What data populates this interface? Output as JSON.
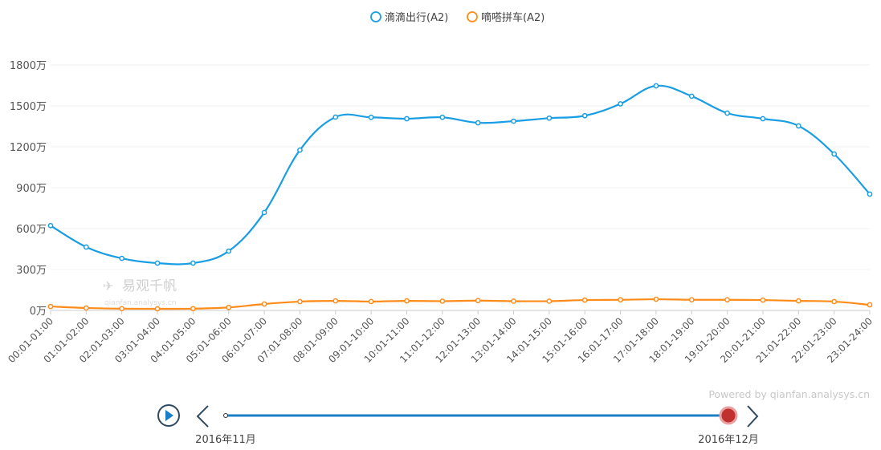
{
  "chart_data": {
    "type": "line",
    "title": "",
    "xlabel": "",
    "ylabel": "",
    "ylim": [
      0,
      1800
    ],
    "y_ticks": [
      "0万",
      "300万",
      "600万",
      "900万",
      "1200万",
      "1500万",
      "1800万"
    ],
    "y_tick_values": [
      0,
      300,
      600,
      900,
      1200,
      1500,
      1800
    ],
    "grid": true,
    "legend_position": "top-center",
    "categories": [
      "00:01-01:00",
      "01:01-02:00",
      "02:01-03:00",
      "03:01-04:00",
      "04:01-05:00",
      "05:01-06:00",
      "06:01-07:00",
      "07:01-08:00",
      "08:01-09:00",
      "09:01-10:00",
      "10:01-11:00",
      "11:01-12:00",
      "12:01-13:00",
      "13:01-14:00",
      "14:01-15:00",
      "15:01-16:00",
      "16:01-17:00",
      "17:01-18:00",
      "18:01-19:00",
      "19:01-20:00",
      "20:01-21:00",
      "21:01-22:00",
      "22:01-23:00",
      "23:01-24:00"
    ],
    "series": [
      {
        "name": "滴滴出行(A2)",
        "color": "#1a9ee3",
        "values": [
          622,
          465,
          382,
          347,
          347,
          435,
          718,
          1176,
          1418,
          1416,
          1406,
          1416,
          1376,
          1388,
          1410,
          1428,
          1515,
          1647,
          1571,
          1447,
          1406,
          1353,
          1147,
          853
        ]
      },
      {
        "name": "嘀嗒拼车(A2)",
        "color": "#ff8c1a",
        "values": [
          29,
          18,
          13,
          12,
          13,
          22,
          47,
          65,
          70,
          65,
          70,
          68,
          72,
          68,
          68,
          76,
          78,
          82,
          78,
          78,
          76,
          70,
          65,
          41
        ]
      }
    ]
  },
  "watermark": {
    "brand": "易观千帆",
    "url": "qianfan.analysys.cn"
  },
  "credit": "Powered by qianfan.analysys.cn",
  "timeline": {
    "start_label": "2016年11月",
    "end_label": "2016年12月",
    "position": 1.0,
    "play_icon": "play-icon",
    "prev_icon": "chevron-left-icon",
    "next_icon": "chevron-right-icon"
  }
}
